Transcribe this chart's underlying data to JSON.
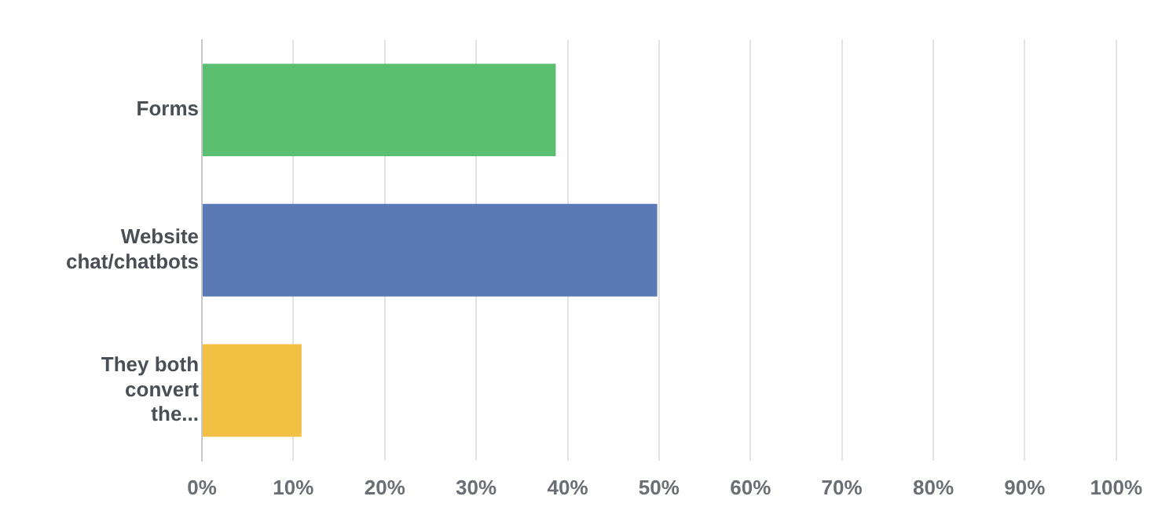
{
  "chart_data": {
    "type": "bar",
    "orientation": "horizontal",
    "categories": [
      "Forms",
      "Website chat/chatbots",
      "They both convert the..."
    ],
    "values": [
      38.7,
      49.8,
      10.9
    ],
    "colors": [
      "#5bbf72",
      "#5a7ab5",
      "#f2c144"
    ],
    "xlim": [
      0,
      100
    ],
    "xticks": [
      {
        "value": 0,
        "label": "0%"
      },
      {
        "value": 10,
        "label": "10%"
      },
      {
        "value": 20,
        "label": "20%"
      },
      {
        "value": 30,
        "label": "30%"
      },
      {
        "value": 40,
        "label": "40%"
      },
      {
        "value": 50,
        "label": "50%"
      },
      {
        "value": 60,
        "label": "60%"
      },
      {
        "value": 70,
        "label": "70%"
      },
      {
        "value": 80,
        "label": "80%"
      },
      {
        "value": 90,
        "label": "90%"
      },
      {
        "value": 100,
        "label": "100%"
      }
    ],
    "grid": "x",
    "legend": false
  }
}
